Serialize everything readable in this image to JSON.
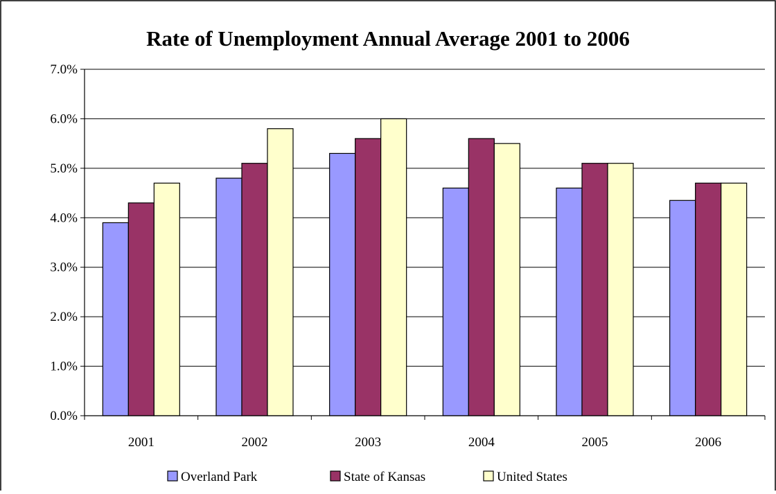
{
  "chart_data": {
    "type": "bar",
    "title": "Rate of Unemployment Annual Average 2001 to 2006",
    "xlabel": "",
    "ylabel": "",
    "categories": [
      "2001",
      "2002",
      "2003",
      "2004",
      "2005",
      "2006"
    ],
    "series": [
      {
        "name": "Overland Park",
        "color": "#9999FF",
        "values": [
          3.9,
          4.8,
          5.3,
          4.6,
          4.6,
          4.35
        ]
      },
      {
        "name": "State of Kansas",
        "color": "#993366",
        "values": [
          4.3,
          5.1,
          5.6,
          5.6,
          5.1,
          4.7
        ]
      },
      {
        "name": "United States",
        "color": "#FFFFCC",
        "values": [
          4.7,
          5.8,
          6.0,
          5.5,
          5.1,
          4.7
        ]
      }
    ],
    "ylim": [
      0,
      7
    ],
    "yticks": [
      "0.0%",
      "1.0%",
      "2.0%",
      "3.0%",
      "4.0%",
      "5.0%",
      "6.0%",
      "7.0%"
    ],
    "grid": true,
    "legend_position": "bottom"
  }
}
